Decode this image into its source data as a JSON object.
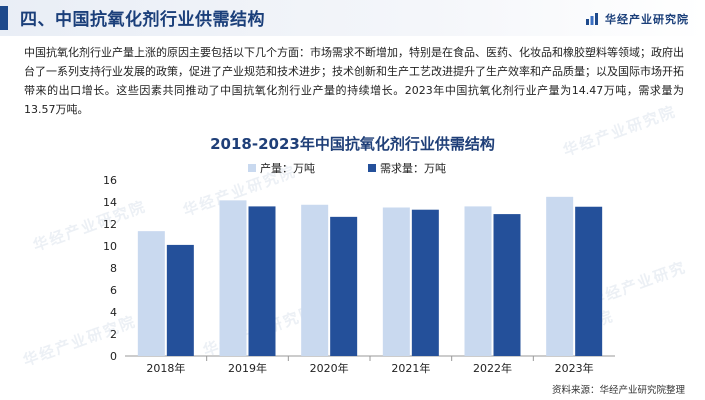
{
  "header": {
    "title": "四、中国抗氧化剂行业供需结构",
    "brand": "华经产业研究院"
  },
  "intro_text": "中国抗氧化剂行业产量上涨的原因主要包括以下几个方面：市场需求不断增加，特别是在食品、医药、化妆品和橡胶塑料等领域；政府出台了一系列支持行业发展的政策，促进了产业规范和技术进步；技术创新和生产工艺改进提升了生产效率和产品质量；以及国际市场开拓带来的出口增长。这些因素共同推动了中国抗氧化剂行业产量的持续增长。2023年中国抗氧化剂行业产量为14.47万吨，需求量为13.57万吨。",
  "chart_data": {
    "type": "bar",
    "title": "2018-2023年中国抗氧化剂行业供需结构",
    "categories": [
      "2018年",
      "2019年",
      "2020年",
      "2021年",
      "2022年",
      "2023年"
    ],
    "series": [
      {
        "name": "产量：万吨",
        "values": [
          11.35,
          14.15,
          13.75,
          13.5,
          13.6,
          14.47
        ],
        "color": "#c9d9ef"
      },
      {
        "name": "需求量：万吨",
        "values": [
          10.1,
          13.6,
          12.65,
          13.3,
          12.9,
          13.57
        ],
        "color": "#24509a"
      }
    ],
    "ylim": [
      0,
      16
    ],
    "yticks": [
      0,
      2,
      4,
      6,
      8,
      10,
      12,
      14,
      16
    ],
    "grid": false,
    "legend_position": "top-left"
  },
  "source": "资料来源：华经产业研究院整理",
  "watermark_text": "华经产业研究院"
}
